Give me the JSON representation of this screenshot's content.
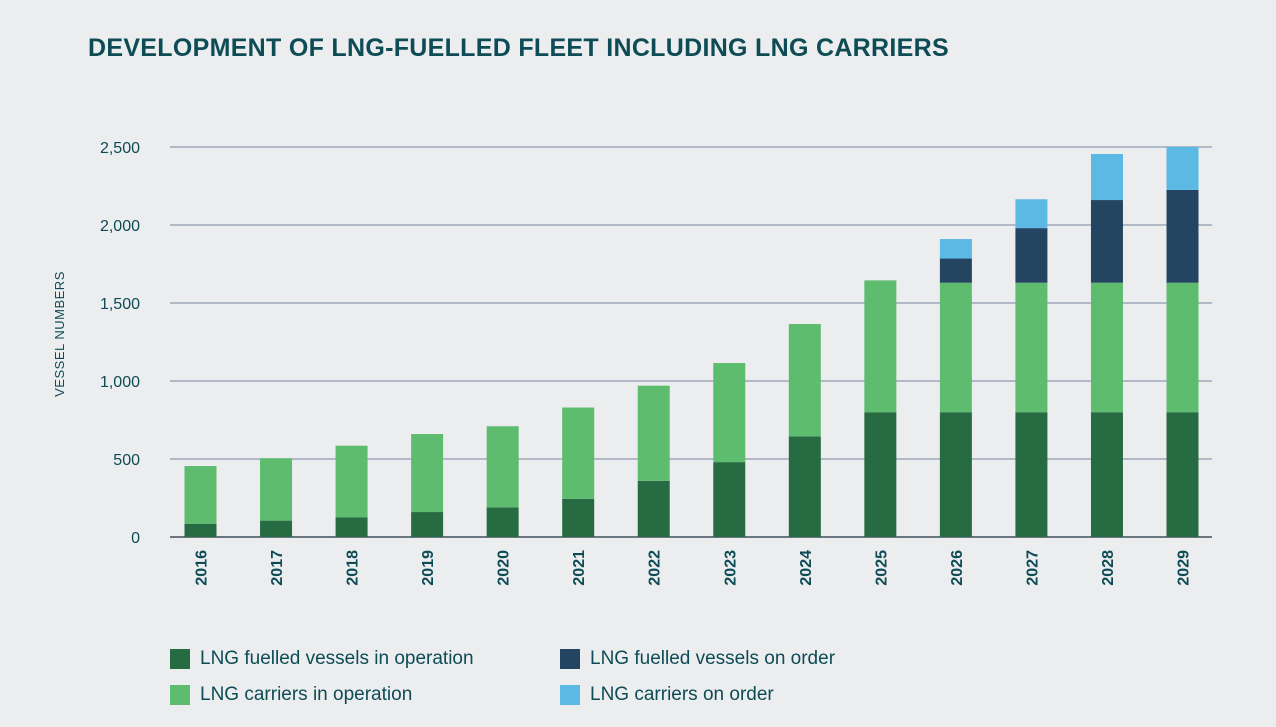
{
  "chart_data": {
    "type": "bar",
    "stacked": true,
    "title": "DEVELOPMENT OF LNG-FUELLED FLEET INCLUDING LNG CARRIERS",
    "xlabel": "",
    "ylabel": "VESSEL NUMBERS",
    "ylim": [
      0,
      2500
    ],
    "yticks": [
      0,
      500,
      1000,
      1500,
      2000,
      2500
    ],
    "ytick_labels": [
      "0",
      "500",
      "1,000",
      "1,500",
      "2,000",
      "2,500"
    ],
    "categories": [
      "2016",
      "2017",
      "2018",
      "2019",
      "2020",
      "2021",
      "2022",
      "2023",
      "2024",
      "2025",
      "2026",
      "2027",
      "2028",
      "2029"
    ],
    "series": [
      {
        "name": "LNG fuelled vessels in operation",
        "color": "#276b42",
        "values": [
          85,
          105,
          125,
          160,
          190,
          245,
          360,
          480,
          645,
          800,
          800,
          800,
          800,
          800
        ]
      },
      {
        "name": "LNG carriers in operation",
        "color": "#5ebc6f",
        "values": [
          370,
          400,
          460,
          500,
          520,
          585,
          610,
          635,
          720,
          845,
          830,
          830,
          830,
          830
        ]
      },
      {
        "name": "LNG fuelled vessels on order",
        "color": "#244562",
        "values": [
          0,
          0,
          0,
          0,
          0,
          0,
          0,
          0,
          0,
          0,
          155,
          350,
          530,
          595
        ]
      },
      {
        "name": "LNG carriers on order",
        "color": "#5cb9e3",
        "values": [
          0,
          0,
          0,
          0,
          0,
          0,
          0,
          0,
          0,
          0,
          125,
          185,
          295,
          275
        ]
      }
    ],
    "grid": true,
    "legend_position": "bottom"
  },
  "legend": {
    "items": [
      {
        "label": "LNG fuelled vessels in operation",
        "color": "#276b42"
      },
      {
        "label": "LNG fuelled vessels on order",
        "color": "#244562"
      },
      {
        "label": "LNG carriers in operation",
        "color": "#5ebc6f"
      },
      {
        "label": "LNG carriers on order",
        "color": "#5cb9e3"
      }
    ]
  }
}
